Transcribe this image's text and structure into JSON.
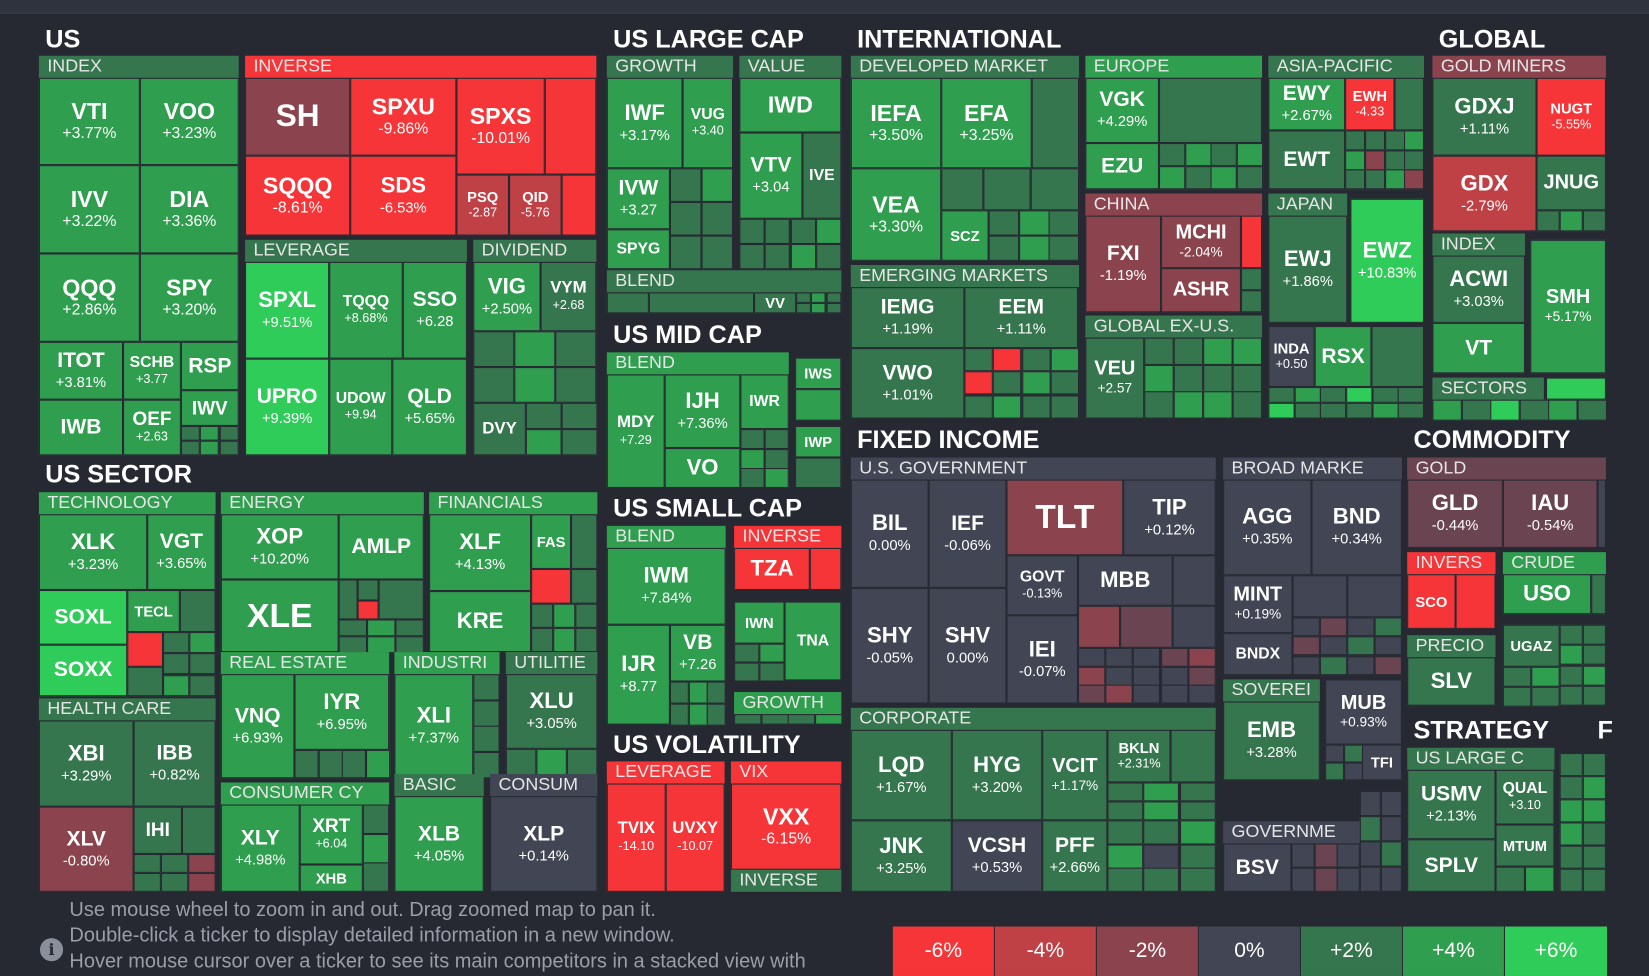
{
  "colors": {
    "bg": "#262931",
    "header": "#2f333d",
    "neutral": "#414554",
    "r6": "#f63538",
    "r4": "#bf4045",
    "r2": "#8b444e",
    "r1": "#6a4450",
    "g1": "#35764e",
    "g2": "#2f9e4f",
    "g3": "#30cc5a"
  },
  "groups": {
    "us": "US",
    "us_large_cap": "US LARGE CAP",
    "international": "INTERNATIONAL",
    "global": "GLOBAL",
    "us_sector": "US SECTOR",
    "us_mid_cap": "US MID CAP",
    "us_small_cap": "US SMALL CAP",
    "us_volatility": "US VOLATILITY",
    "fixed_income": "FIXED INCOME",
    "commodity": "COMMODITY",
    "strategy": "STRATEGY",
    "cut_off": "F"
  },
  "subgroups": {
    "index": "INDEX",
    "inverse": "INVERSE",
    "leverage": "LEVERAGE",
    "dividend": "DIVIDEND",
    "growth": "GROWTH",
    "value": "VALUE",
    "blend": "BLEND",
    "developed_market": "DEVELOPED MARKET",
    "europe": "EUROPE",
    "asia_pacific": "ASIA-PACIFIC",
    "gold_miners": "GOLD MINERS",
    "china": "CHINA",
    "japan": "JAPAN",
    "global_index": "INDEX",
    "emerging_markets": "EMERGING MARKETS",
    "global_ex_us": "GLOBAL EX-U.S.",
    "sectors": "SECTORS",
    "mid_blend": "BLEND",
    "small_blend": "BLEND",
    "small_inverse": "INVERSE",
    "small_growth": "GROWTH",
    "technology": "TECHNOLOGY",
    "energy": "ENERGY",
    "financials": "FINANCIALS",
    "health_care": "HEALTH CARE",
    "real_estate": "REAL ESTATE",
    "industri": "INDUSTRI",
    "utilitie": "UTILITIE",
    "consumer_cy": "CONSUMER CY",
    "basic": "BASIC",
    "consum": "CONSUM",
    "vol_leverage": "LEVERAGE",
    "vix": "VIX",
    "vol_inverse": "INVERSE",
    "us_government": "U.S. GOVERNMENT",
    "broad_marke": "BROAD MARKE",
    "corporate": "CORPORATE",
    "soverei": "SOVEREI",
    "governme": "GOVERNME",
    "gold": "GOLD",
    "invers": "INVERS",
    "crude": "CRUDE",
    "precio": "PRECIO",
    "us_large_c": "US LARGE C"
  },
  "tickers": {
    "VTI": {
      "s": "VTI",
      "p": "+3.77%"
    },
    "VOO": {
      "s": "VOO",
      "p": "+3.23%"
    },
    "IVV": {
      "s": "IVV",
      "p": "+3.22%"
    },
    "DIA": {
      "s": "DIA",
      "p": "+3.36%"
    },
    "QQQ": {
      "s": "QQQ",
      "p": "+2.86%"
    },
    "SPY": {
      "s": "SPY",
      "p": "+3.20%"
    },
    "ITOT": {
      "s": "ITOT",
      "p": "+3.81%"
    },
    "SCHB": {
      "s": "SCHB",
      "p": "+3.77"
    },
    "RSP": {
      "s": "RSP",
      "p": ""
    },
    "IWB": {
      "s": "IWB",
      "p": ""
    },
    "OEF": {
      "s": "OEF",
      "p": "+2.63"
    },
    "IWV": {
      "s": "IWV",
      "p": ""
    },
    "SH": {
      "s": "SH",
      "p": ""
    },
    "SPXU": {
      "s": "SPXU",
      "p": "-9.86%"
    },
    "SPXS": {
      "s": "SPXS",
      "p": "-10.01%"
    },
    "SQQQ": {
      "s": "SQQQ",
      "p": "-8.61%"
    },
    "SDS": {
      "s": "SDS",
      "p": "-6.53%"
    },
    "PSQ": {
      "s": "PSQ",
      "p": "-2.87"
    },
    "QID": {
      "s": "QID",
      "p": "-5.76"
    },
    "SPXL": {
      "s": "SPXL",
      "p": "+9.51%"
    },
    "TQQQ": {
      "s": "TQQQ",
      "p": "+8.68%"
    },
    "SSO": {
      "s": "SSO",
      "p": "+6.28"
    },
    "UPRO": {
      "s": "UPRO",
      "p": "+9.39%"
    },
    "UDOW": {
      "s": "UDOW",
      "p": "+9.94"
    },
    "QLD": {
      "s": "QLD",
      "p": "+5.65%"
    },
    "VIG": {
      "s": "VIG",
      "p": "+2.50%"
    },
    "VYM": {
      "s": "VYM",
      "p": "+2.68"
    },
    "DVY": {
      "s": "DVY",
      "p": ""
    },
    "IWF": {
      "s": "IWF",
      "p": "+3.17%"
    },
    "VUG": {
      "s": "VUG",
      "p": "+3.40"
    },
    "IVW": {
      "s": "IVW",
      "p": "+3.27"
    },
    "SPYG": {
      "s": "SPYG",
      "p": ""
    },
    "IWD": {
      "s": "IWD",
      "p": ""
    },
    "VTV": {
      "s": "VTV",
      "p": "+3.04"
    },
    "IVE": {
      "s": "IVE",
      "p": ""
    },
    "VV": {
      "s": "VV",
      "p": ""
    },
    "IEFA": {
      "s": "IEFA",
      "p": "+3.50%"
    },
    "EFA": {
      "s": "EFA",
      "p": "+3.25%"
    },
    "VEA": {
      "s": "VEA",
      "p": "+3.30%"
    },
    "SCZ": {
      "s": "SCZ",
      "p": ""
    },
    "VGK": {
      "s": "VGK",
      "p": "+4.29%"
    },
    "EZU": {
      "s": "EZU",
      "p": ""
    },
    "EWY": {
      "s": "EWY",
      "p": "+2.67%"
    },
    "EWH": {
      "s": "EWH",
      "p": "-4.33"
    },
    "EWT": {
      "s": "EWT",
      "p": ""
    },
    "FXI": {
      "s": "FXI",
      "p": "-1.19%"
    },
    "MCHI": {
      "s": "MCHI",
      "p": "-2.04%"
    },
    "ASHR": {
      "s": "ASHR",
      "p": ""
    },
    "EWJ": {
      "s": "EWJ",
      "p": "+1.86%"
    },
    "EWZ": {
      "s": "EWZ",
      "p": "+10.83%"
    },
    "IEMG": {
      "s": "IEMG",
      "p": "+1.19%"
    },
    "EEM": {
      "s": "EEM",
      "p": "+1.11%"
    },
    "VWO": {
      "s": "VWO",
      "p": "+1.01%"
    },
    "VEU": {
      "s": "VEU",
      "p": "+2.57"
    },
    "INDA": {
      "s": "INDA",
      "p": "+0.50"
    },
    "RSX": {
      "s": "RSX",
      "p": ""
    },
    "GDXJ": {
      "s": "GDXJ",
      "p": "+1.11%"
    },
    "NUGT": {
      "s": "NUGT",
      "p": "-5.55%"
    },
    "GDX": {
      "s": "GDX",
      "p": "-2.79%"
    },
    "JNUG": {
      "s": "JNUG",
      "p": ""
    },
    "ACWI": {
      "s": "ACWI",
      "p": "+3.03%"
    },
    "SMH": {
      "s": "SMH",
      "p": "+5.17%"
    },
    "VT": {
      "s": "VT",
      "p": ""
    },
    "MDY": {
      "s": "MDY",
      "p": "+7.29"
    },
    "IJH": {
      "s": "IJH",
      "p": "+7.36%"
    },
    "IWR": {
      "s": "IWR",
      "p": ""
    },
    "VO": {
      "s": "VO",
      "p": ""
    },
    "IWS": {
      "s": "IWS",
      "p": ""
    },
    "IWP": {
      "s": "IWP",
      "p": ""
    },
    "IWM": {
      "s": "IWM",
      "p": "+7.84%"
    },
    "TZA": {
      "s": "TZA",
      "p": ""
    },
    "IJR": {
      "s": "IJR",
      "p": "+8.77"
    },
    "VB": {
      "s": "VB",
      "p": "+7.26"
    },
    "IWN": {
      "s": "IWN",
      "p": ""
    },
    "TNA": {
      "s": "TNA",
      "p": ""
    },
    "TVIX": {
      "s": "TVIX",
      "p": "-14.10"
    },
    "UVXY": {
      "s": "UVXY",
      "p": "-10.07"
    },
    "VXX": {
      "s": "VXX",
      "p": "-6.15%"
    },
    "XLK": {
      "s": "XLK",
      "p": "+3.23%"
    },
    "VGT": {
      "s": "VGT",
      "p": "+3.65%"
    },
    "SOXL": {
      "s": "SOXL",
      "p": ""
    },
    "TECL": {
      "s": "TECL",
      "p": ""
    },
    "SOXX": {
      "s": "SOXX",
      "p": ""
    },
    "XOP": {
      "s": "XOP",
      "p": "+10.20%"
    },
    "AMLP": {
      "s": "AMLP",
      "p": ""
    },
    "XLE": {
      "s": "XLE",
      "p": ""
    },
    "XLF": {
      "s": "XLF",
      "p": "+4.13%"
    },
    "FAS": {
      "s": "FAS",
      "p": ""
    },
    "KRE": {
      "s": "KRE",
      "p": ""
    },
    "XBI": {
      "s": "XBI",
      "p": "+3.29%"
    },
    "IBB": {
      "s": "IBB",
      "p": "+0.82%"
    },
    "XLV": {
      "s": "XLV",
      "p": "-0.80%"
    },
    "IHI": {
      "s": "IHI",
      "p": ""
    },
    "VNQ": {
      "s": "VNQ",
      "p": "+6.93%"
    },
    "IYR": {
      "s": "IYR",
      "p": "+6.95%"
    },
    "XLI": {
      "s": "XLI",
      "p": "+7.37%"
    },
    "XLU": {
      "s": "XLU",
      "p": "+3.05%"
    },
    "XLY": {
      "s": "XLY",
      "p": "+4.98%"
    },
    "XRT": {
      "s": "XRT",
      "p": "+6.04"
    },
    "XHB": {
      "s": "XHB",
      "p": ""
    },
    "XLB": {
      "s": "XLB",
      "p": "+4.05%"
    },
    "XLP": {
      "s": "XLP",
      "p": "+0.14%"
    },
    "BIL": {
      "s": "BIL",
      "p": "0.00%"
    },
    "IEF": {
      "s": "IEF",
      "p": "-0.06%"
    },
    "TLT": {
      "s": "TLT",
      "p": ""
    },
    "TIP": {
      "s": "TIP",
      "p": "+0.12%"
    },
    "GOVT": {
      "s": "GOVT",
      "p": "-0.13%"
    },
    "MBB": {
      "s": "MBB",
      "p": ""
    },
    "SHY": {
      "s": "SHY",
      "p": "-0.05%"
    },
    "SHV": {
      "s": "SHV",
      "p": "0.00%"
    },
    "IEI": {
      "s": "IEI",
      "p": "-0.07%"
    },
    "AGG": {
      "s": "AGG",
      "p": "+0.35%"
    },
    "BND": {
      "s": "BND",
      "p": "+0.34%"
    },
    "MINT": {
      "s": "MINT",
      "p": "+0.19%"
    },
    "BNDX": {
      "s": "BNDX",
      "p": ""
    },
    "LQD": {
      "s": "LQD",
      "p": "+1.67%"
    },
    "HYG": {
      "s": "HYG",
      "p": "+3.20%"
    },
    "VCIT": {
      "s": "VCIT",
      "p": "+1.17%"
    },
    "BKLN": {
      "s": "BKLN",
      "p": "+2.31%"
    },
    "JNK": {
      "s": "JNK",
      "p": "+3.25%"
    },
    "VCSH": {
      "s": "VCSH",
      "p": "+0.53%"
    },
    "PFF": {
      "s": "PFF",
      "p": "+2.66%"
    },
    "EMB": {
      "s": "EMB",
      "p": "+3.28%"
    },
    "MUB": {
      "s": "MUB",
      "p": "+0.93%"
    },
    "TFI": {
      "s": "TFI",
      "p": ""
    },
    "BSV": {
      "s": "BSV",
      "p": ""
    },
    "GLD": {
      "s": "GLD",
      "p": "-0.44%"
    },
    "IAU": {
      "s": "IAU",
      "p": "-0.54%"
    },
    "SCO": {
      "s": "SCO",
      "p": ""
    },
    "USO": {
      "s": "USO",
      "p": ""
    },
    "SLV": {
      "s": "SLV",
      "p": ""
    },
    "UGAZ": {
      "s": "UGAZ",
      "p": ""
    },
    "USMV": {
      "s": "USMV",
      "p": "+2.13%"
    },
    "QUAL": {
      "s": "QUAL",
      "p": "+3.10"
    },
    "MTUM": {
      "s": "MTUM",
      "p": ""
    },
    "SPLV": {
      "s": "SPLV",
      "p": ""
    }
  },
  "help": {
    "line1": "Use mouse wheel to zoom in and out. Drag zoomed map to pan it.",
    "line2": "Double-click a ticker to display detailed information in a new window.",
    "line3": "Hover mouse cursor over a ticker to see its main competitors in a stacked view with"
  },
  "legend": [
    "-6%",
    "-4%",
    "-2%",
    "0%",
    "+2%",
    "+4%",
    "+6%"
  ]
}
